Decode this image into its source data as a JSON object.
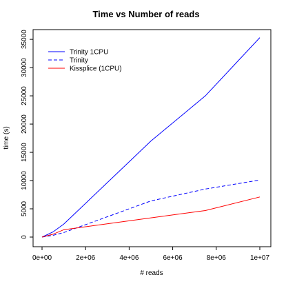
{
  "chart_data": {
    "type": "line",
    "title": "Time vs Number of reads",
    "xlabel": "# reads",
    "ylabel": "time (s)",
    "xlim": [
      0,
      10000000
    ],
    "ylim": [
      0,
      35500
    ],
    "x_ticks": [
      0,
      2000000,
      4000000,
      6000000,
      8000000,
      10000000
    ],
    "x_tick_labels": [
      "0e+00",
      "2e+06",
      "4e+06",
      "6e+06",
      "8e+06",
      "1e+07"
    ],
    "y_ticks": [
      0,
      5000,
      10000,
      15000,
      20000,
      25000,
      30000,
      35000
    ],
    "y_tick_labels": [
      "0",
      "5000",
      "10000",
      "15000",
      "20000",
      "25000",
      "30000",
      "35000"
    ],
    "grid": false,
    "legend_position": "top-left",
    "series": [
      {
        "name": "Trinity 1CPU",
        "color": "#0000ff",
        "dash": "solid",
        "x": [
          0,
          500000,
          1000000,
          5000000,
          7500000,
          10000000
        ],
        "y": [
          0,
          900,
          2300,
          17000,
          25000,
          35300
        ]
      },
      {
        "name": "Trinity",
        "color": "#0000ff",
        "dash": "dashed",
        "x": [
          0,
          500000,
          1000000,
          5000000,
          7500000,
          10000000
        ],
        "y": [
          0,
          300,
          800,
          6400,
          8500,
          10100
        ]
      },
      {
        "name": "Kissplice (1CPU)",
        "color": "#ff0000",
        "dash": "solid",
        "x": [
          0,
          500000,
          1000000,
          5000000,
          7500000,
          10000000
        ],
        "y": [
          0,
          500,
          1300,
          3400,
          4700,
          7100
        ]
      }
    ]
  }
}
